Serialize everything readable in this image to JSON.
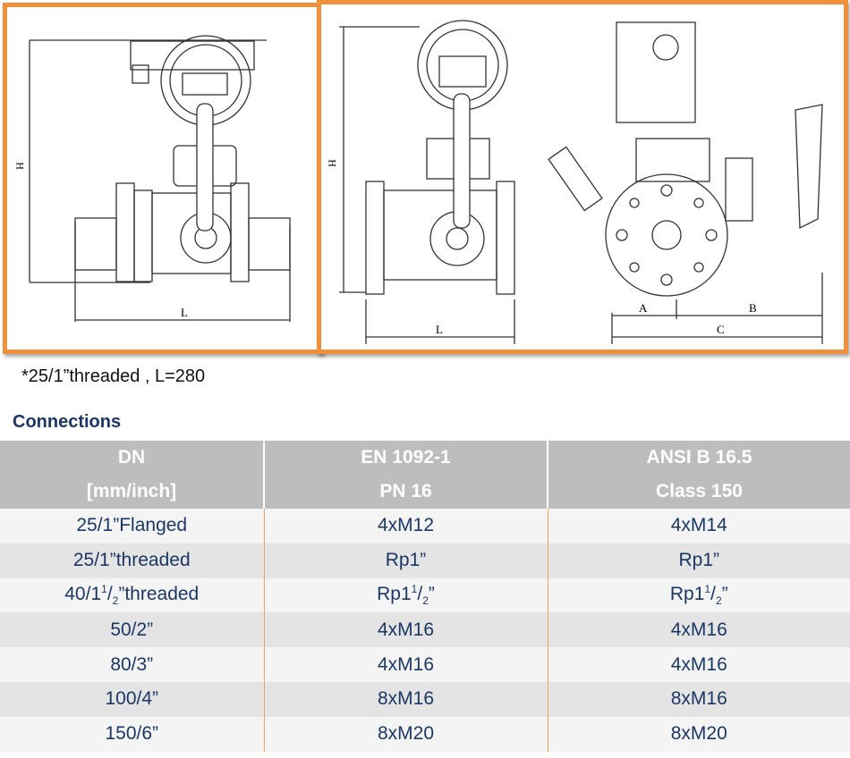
{
  "drawings": {
    "left": {
      "dimension_labels": [
        "H",
        "L"
      ]
    },
    "right": {
      "dimension_labels": [
        "H",
        "L",
        "A",
        "B",
        "C"
      ]
    }
  },
  "note": "*25/1”threaded , L=280",
  "section_title": "Connections",
  "table": {
    "headers": [
      {
        "top": "DN",
        "bottom": "[mm/inch]"
      },
      {
        "top": "EN 1092-1",
        "bottom": "PN 16"
      },
      {
        "top": "ANSI B 16.5",
        "bottom": "Class 150"
      }
    ],
    "rows": [
      [
        "25/1”Flanged",
        "4xM12",
        "4xM14"
      ],
      [
        "25/1”threaded",
        "Rp1”",
        "Rp1”"
      ],
      [
        {
          "base": "40/1",
          "sup": "1",
          "sep": "/",
          "sub": "2",
          "suffix": "”threaded"
        },
        {
          "base": "Rp1",
          "sup": "1",
          "sep": "/",
          "sub": "2",
          "suffix": "”"
        },
        {
          "base": "Rp1",
          "sup": "1",
          "sep": "/",
          "sub": "2",
          "suffix": "”"
        }
      ],
      [
        "50/2”",
        "4xM16",
        "4xM16"
      ],
      [
        "80/3”",
        "4xM16",
        "4xM16"
      ],
      [
        "100/4”",
        "8xM16",
        "8xM16"
      ],
      [
        "150/6”",
        "8xM20",
        "8xM20"
      ]
    ]
  },
  "colors": {
    "frame": "#f0903a",
    "heading": "#1b3763",
    "header_bg": "#bdbdbd"
  }
}
